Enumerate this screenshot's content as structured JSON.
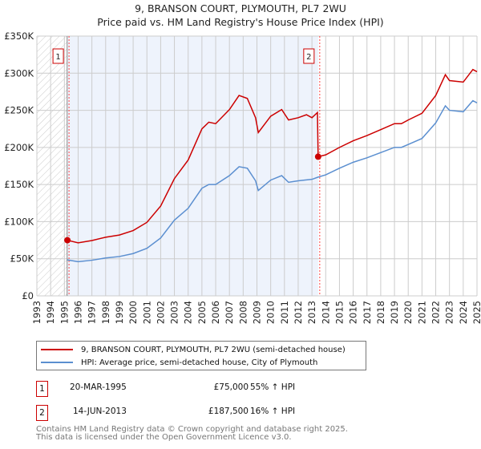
{
  "chart_data": {
    "type": "line",
    "title": "9, BRANSON COURT, PLYMOUTH, PL7 2WU",
    "subtitle": "Price paid vs. HM Land Registry's House Price Index (HPI)",
    "xlim": [
      1993,
      2025
    ],
    "ylim": [
      0,
      350000
    ],
    "x_ticks": [
      "1993",
      "1994",
      "1995",
      "1996",
      "1997",
      "1998",
      "1999",
      "2000",
      "2001",
      "2002",
      "2003",
      "2004",
      "2005",
      "2006",
      "2007",
      "2008",
      "2009",
      "2010",
      "2011",
      "2012",
      "2013",
      "2014",
      "2015",
      "2016",
      "2017",
      "2018",
      "2019",
      "2020",
      "2021",
      "2022",
      "2023",
      "2024",
      "2025"
    ],
    "y_ticks": [
      {
        "v": 0,
        "label": "£0"
      },
      {
        "v": 50000,
        "label": "£50K"
      },
      {
        "v": 100000,
        "label": "£100K"
      },
      {
        "v": 150000,
        "label": "£150K"
      },
      {
        "v": 200000,
        "label": "£200K"
      },
      {
        "v": 250000,
        "label": "£250K"
      },
      {
        "v": 300000,
        "label": "£300K"
      },
      {
        "v": 350000,
        "label": "£350K"
      }
    ],
    "grid": true,
    "colors": {
      "property": "#cc0000",
      "hpi": "#5b8fd0",
      "shade": "#eef3fc",
      "marker": "#ff4444"
    },
    "series": [
      {
        "name": "9, BRANSON COURT, PLYMOUTH, PL7 2WU (semi-detached house)",
        "key": "property",
        "points": [
          [
            1995.2,
            75000
          ],
          [
            1996,
            71500
          ],
          [
            1997,
            74500
          ],
          [
            1998,
            79000
          ],
          [
            1999,
            82000
          ],
          [
            2000,
            88000
          ],
          [
            2001,
            99000
          ],
          [
            2002,
            121000
          ],
          [
            2003,
            158000
          ],
          [
            2004,
            183000
          ],
          [
            2005,
            225000
          ],
          [
            2005.5,
            234000
          ],
          [
            2006,
            232000
          ],
          [
            2007,
            251000
          ],
          [
            2007.7,
            270000
          ],
          [
            2008.3,
            266000
          ],
          [
            2008.9,
            240000
          ],
          [
            2009.1,
            220000
          ],
          [
            2010,
            242000
          ],
          [
            2010.8,
            251000
          ],
          [
            2011.3,
            237000
          ],
          [
            2012,
            240000
          ],
          [
            2012.6,
            244000
          ],
          [
            2013,
            240000
          ],
          [
            2013.4,
            247000
          ],
          [
            2013.45,
            187500
          ],
          [
            2014,
            190000
          ],
          [
            2015,
            200000
          ],
          [
            2016,
            209000
          ],
          [
            2017,
            216000
          ],
          [
            2018,
            224000
          ],
          [
            2019,
            232000
          ],
          [
            2019.5,
            232000
          ],
          [
            2020,
            237000
          ],
          [
            2021,
            246000
          ],
          [
            2022,
            270000
          ],
          [
            2022.7,
            298000
          ],
          [
            2023,
            290000
          ],
          [
            2024,
            288000
          ],
          [
            2024.7,
            305000
          ],
          [
            2025,
            302000
          ]
        ]
      },
      {
        "name": "HPI: Average price, semi-detached house, City of Plymouth",
        "key": "hpi",
        "points": [
          [
            1995.2,
            48500
          ],
          [
            1996,
            46000
          ],
          [
            1997,
            48000
          ],
          [
            1998,
            51000
          ],
          [
            1999,
            53000
          ],
          [
            2000,
            57000
          ],
          [
            2001,
            64000
          ],
          [
            2002,
            78000
          ],
          [
            2003,
            102000
          ],
          [
            2004,
            118000
          ],
          [
            2005,
            145000
          ],
          [
            2005.5,
            150000
          ],
          [
            2006,
            150000
          ],
          [
            2007,
            162000
          ],
          [
            2007.7,
            174000
          ],
          [
            2008.3,
            172000
          ],
          [
            2008.9,
            155000
          ],
          [
            2009.1,
            142000
          ],
          [
            2010,
            156000
          ],
          [
            2010.8,
            162000
          ],
          [
            2011.3,
            153000
          ],
          [
            2012,
            155000
          ],
          [
            2013,
            157000
          ],
          [
            2013.45,
            160000
          ],
          [
            2014,
            163000
          ],
          [
            2015,
            172000
          ],
          [
            2016,
            180000
          ],
          [
            2017,
            186000
          ],
          [
            2018,
            193000
          ],
          [
            2019,
            200000
          ],
          [
            2019.5,
            200000
          ],
          [
            2020,
            204000
          ],
          [
            2021,
            212000
          ],
          [
            2022,
            233000
          ],
          [
            2022.7,
            256000
          ],
          [
            2023,
            250000
          ],
          [
            2024,
            248000
          ],
          [
            2024.7,
            263000
          ],
          [
            2025,
            260000
          ]
        ]
      }
    ],
    "sales": [
      {
        "n": "1",
        "x": 1995.22,
        "y": 75000
      },
      {
        "n": "2",
        "x": 2013.45,
        "y": 187500
      }
    ],
    "hatch_before": 1995.2,
    "shade_range": [
      1995.2,
      2013.45
    ]
  },
  "legend": {
    "property": "9, BRANSON COURT, PLYMOUTH, PL7 2WU (semi-detached house)",
    "hpi": "HPI: Average price, semi-detached house, City of Plymouth"
  },
  "sales_table": [
    {
      "n": "1",
      "date": "20-MAR-1995",
      "price": "£75,000",
      "delta": "55% ↑ HPI"
    },
    {
      "n": "2",
      "date": "14-JUN-2013",
      "price": "£187,500",
      "delta": "16% ↑ HPI"
    }
  ],
  "footer": {
    "line1": "Contains HM Land Registry data © Crown copyright and database right 2025.",
    "line2": "This data is licensed under the Open Government Licence v3.0."
  }
}
